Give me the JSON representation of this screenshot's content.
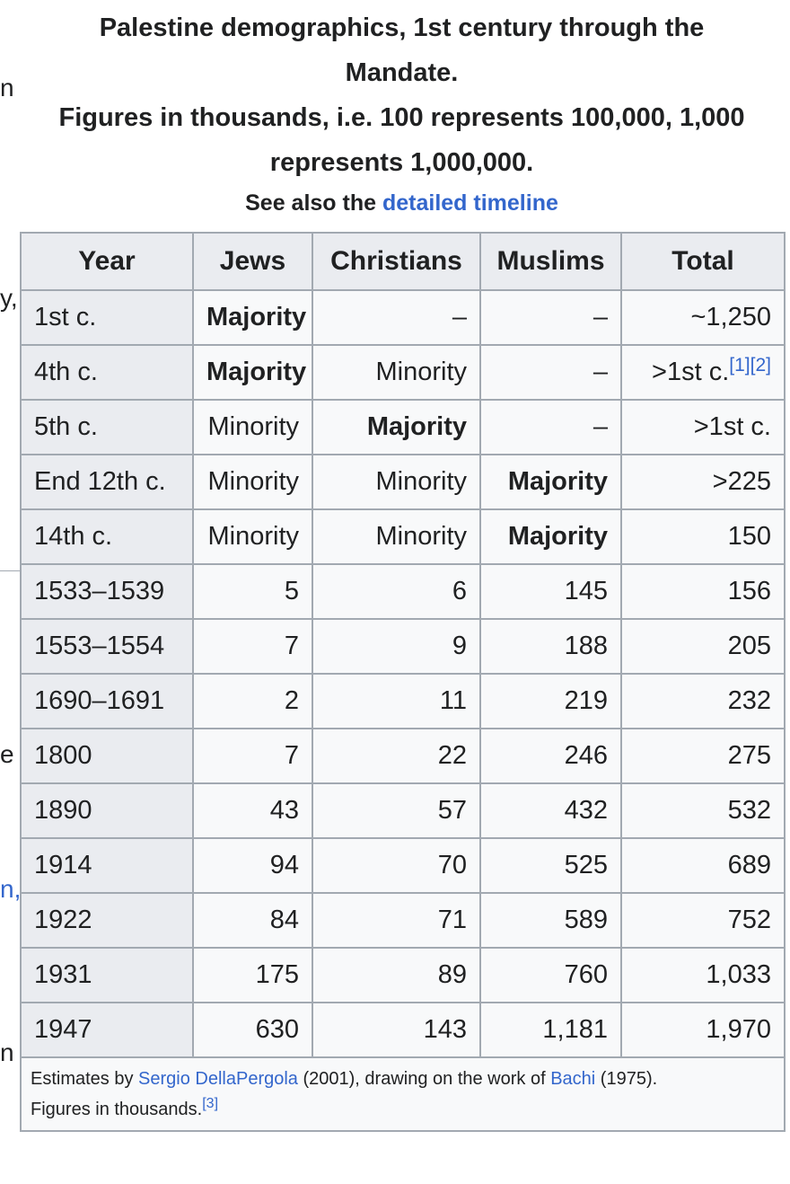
{
  "gutter": {
    "fragments": [
      {
        "text": "n",
        "link": false
      },
      {
        "text": "y,",
        "link": false
      },
      {
        "text": "e",
        "link": false
      },
      {
        "text": "n,",
        "link": true
      },
      {
        "text": "n",
        "link": false
      }
    ]
  },
  "caption": {
    "line1": "Palestine demographics, 1st century through the",
    "line2": "Mandate.",
    "line3": "Figures in thousands, i.e. 100 represents 100,000, 1,000",
    "line4": "represents 1,000,000.",
    "see_also_prefix": "See also the ",
    "see_also_link": "detailed timeline"
  },
  "table": {
    "headers": [
      "Year",
      "Jews",
      "Christians",
      "Muslims",
      "Total"
    ],
    "rows": [
      {
        "year": "1st c.",
        "jews": "Majority",
        "christians": "–",
        "muslims": "–",
        "total": "~1,250"
      },
      {
        "year": "4th c.",
        "jews": "Majority",
        "christians": "Minority",
        "muslims": "–",
        "total": ">1st c."
      },
      {
        "year": "5th c.",
        "jews": "Minority",
        "christians": "Majority",
        "muslims": "–",
        "total": ">1st c."
      },
      {
        "year": "End 12th c.",
        "jews": "Minority",
        "christians": "Minority",
        "muslims": "Majority",
        "total": ">225"
      },
      {
        "year": "14th c.",
        "jews": "Minority",
        "christians": "Minority",
        "muslims": "Majority",
        "total": "150"
      },
      {
        "year": "1533–1539",
        "jews": "5",
        "christians": "6",
        "muslims": "145",
        "total": "156"
      },
      {
        "year": "1553–1554",
        "jews": "7",
        "christians": "9",
        "muslims": "188",
        "total": "205"
      },
      {
        "year": "1690–1691",
        "jews": "2",
        "christians": "11",
        "muslims": "219",
        "total": "232"
      },
      {
        "year": "1800",
        "jews": "7",
        "christians": "22",
        "muslims": "246",
        "total": "275"
      },
      {
        "year": "1890",
        "jews": "43",
        "christians": "57",
        "muslims": "432",
        "total": "532"
      },
      {
        "year": "1914",
        "jews": "94",
        "christians": "70",
        "muslims": "525",
        "total": "689"
      },
      {
        "year": "1922",
        "jews": "84",
        "christians": "71",
        "muslims": "589",
        "total": "752"
      },
      {
        "year": "1931",
        "jews": "175",
        "christians": "89",
        "muslims": "760",
        "total": "1,033"
      },
      {
        "year": "1947",
        "jews": "630",
        "christians": "143",
        "muslims": "1,181",
        "total": "1,970"
      }
    ],
    "ref_4th_c": "[1][2]",
    "footnote": {
      "t1": "Estimates by ",
      "link1": "Sergio DellaPergola",
      "t2": " (2001), drawing on the work of ",
      "link2": "Bachi",
      "t3": " (1975).",
      "t4": "Figures in thousands.",
      "ref": "[3]"
    }
  },
  "colors": {
    "link": "#3366cc",
    "header_bg": "#eaecf0",
    "cell_bg": "#f8f9fa",
    "border": "#a2a9b1"
  }
}
